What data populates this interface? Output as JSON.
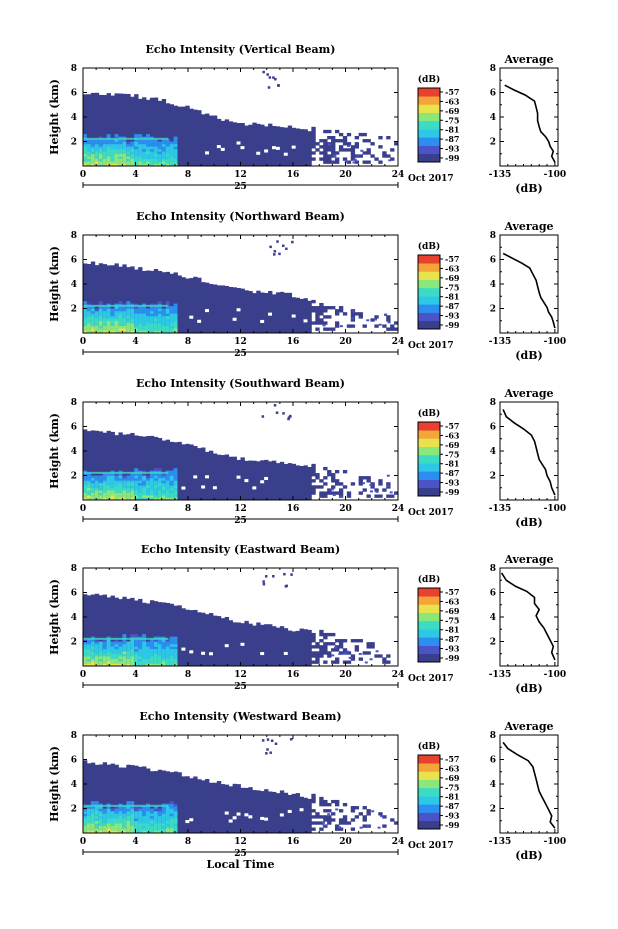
{
  "chart_data": [
    {
      "type": "heatmap",
      "title": "Echo Intensity (Vertical Beam)",
      "ylabel": "Height (km)",
      "xlim": [
        0,
        24
      ],
      "ylim": [
        0,
        8
      ],
      "xticks": [
        0,
        4,
        8,
        12,
        16,
        20,
        24
      ],
      "yticks": [
        2,
        4,
        6,
        8
      ],
      "date_label": "25",
      "month_label": "Oct 2017",
      "echo_top_km": [
        [
          0,
          6.0
        ],
        [
          2,
          5.9
        ],
        [
          4,
          5.7
        ],
        [
          6,
          5.4
        ],
        [
          8,
          4.8
        ],
        [
          10,
          4.0
        ],
        [
          12,
          3.5
        ],
        [
          14,
          3.3
        ],
        [
          16,
          3.2
        ],
        [
          18,
          2.9
        ],
        [
          20,
          2.6
        ],
        [
          22,
          2.4
        ],
        [
          24,
          2.2
        ]
      ],
      "colorbar": {
        "unit": "(dB)",
        "ticks": [
          -57,
          -63,
          -69,
          -75,
          -81,
          -87,
          -93,
          -99
        ]
      },
      "profile": {
        "title": "Average",
        "xlabel": "(dB)",
        "xlim": [
          -135,
          -98
        ],
        "ylim": [
          0,
          8
        ],
        "xticks": [
          -135,
          -100
        ],
        "yticks": [
          2,
          4,
          6,
          8
        ],
        "x": [
          -132,
          -126,
          -119,
          -113,
          -112,
          -111,
          -111,
          -110,
          -109,
          -106,
          -104,
          -103,
          -101,
          -102,
          -100
        ],
        "y": [
          6.6,
          6.2,
          5.8,
          5.3,
          4.8,
          4.3,
          3.7,
          3.2,
          2.8,
          2.4,
          2.0,
          1.6,
          1.2,
          0.8,
          0.3
        ]
      }
    },
    {
      "type": "heatmap",
      "title": "Echo Intensity (Northward Beam)",
      "ylabel": "Height (km)",
      "xlim": [
        0,
        24
      ],
      "ylim": [
        0,
        8
      ],
      "xticks": [
        0,
        4,
        8,
        12,
        16,
        20,
        24
      ],
      "yticks": [
        2,
        4,
        6,
        8
      ],
      "date_label": "25",
      "month_label": "Oct 2017",
      "echo_top_km": [
        [
          0,
          5.8
        ],
        [
          2,
          5.6
        ],
        [
          4,
          5.3
        ],
        [
          6,
          5.0
        ],
        [
          8,
          4.6
        ],
        [
          10,
          4.0
        ],
        [
          12,
          3.5
        ],
        [
          14,
          3.3
        ],
        [
          16,
          3.1
        ],
        [
          18,
          2.5
        ],
        [
          20,
          1.8
        ],
        [
          22,
          1.2
        ],
        [
          24,
          1.0
        ]
      ],
      "colorbar": {
        "unit": "(dB)",
        "ticks": [
          -57,
          -63,
          -69,
          -75,
          -81,
          -87,
          -93,
          -99
        ]
      },
      "profile": {
        "title": "Average",
        "xlabel": "(dB)",
        "xlim": [
          -135,
          -98
        ],
        "ylim": [
          0,
          8
        ],
        "xticks": [
          -135,
          -100
        ],
        "yticks": [
          2,
          4,
          6,
          8
        ],
        "x": [
          -133,
          -127,
          -121,
          -116,
          -114,
          -112,
          -111,
          -110,
          -109,
          -107,
          -105,
          -104,
          -102,
          -101,
          -100
        ],
        "y": [
          6.5,
          6.1,
          5.7,
          5.3,
          4.8,
          4.3,
          3.8,
          3.3,
          2.9,
          2.5,
          2.1,
          1.7,
          1.3,
          0.9,
          0.4
        ]
      }
    },
    {
      "type": "heatmap",
      "title": "Echo Intensity (Southward Beam)",
      "ylabel": "Height (km)",
      "xlim": [
        0,
        24
      ],
      "ylim": [
        0,
        8
      ],
      "xticks": [
        0,
        4,
        8,
        12,
        16,
        20,
        24
      ],
      "yticks": [
        2,
        4,
        6,
        8
      ],
      "date_label": "25",
      "month_label": "Oct 2017",
      "echo_top_km": [
        [
          0,
          5.7
        ],
        [
          2,
          5.5
        ],
        [
          4,
          5.3
        ],
        [
          6,
          5.0
        ],
        [
          8,
          4.5
        ],
        [
          10,
          3.9
        ],
        [
          12,
          3.4
        ],
        [
          14,
          3.2
        ],
        [
          16,
          3.0
        ],
        [
          18,
          2.6
        ],
        [
          20,
          2.2
        ],
        [
          22,
          1.6
        ],
        [
          24,
          1.2
        ]
      ],
      "colorbar": {
        "unit": "(dB)",
        "ticks": [
          -57,
          -63,
          -69,
          -75,
          -81,
          -87,
          -93,
          -99
        ]
      },
      "profile": {
        "title": "Average",
        "xlabel": "(dB)",
        "xlim": [
          -135,
          -98
        ],
        "ylim": [
          0,
          8
        ],
        "xticks": [
          -135,
          -100
        ],
        "yticks": [
          2,
          4,
          6,
          8
        ],
        "x": [
          -133,
          -131,
          -126,
          -120,
          -115,
          -113,
          -112,
          -111,
          -110,
          -108,
          -106,
          -105,
          -103,
          -102,
          -100
        ],
        "y": [
          7.4,
          6.8,
          6.3,
          5.8,
          5.3,
          4.8,
          4.3,
          3.8,
          3.3,
          2.9,
          2.5,
          2.0,
          1.5,
          1.0,
          0.4
        ]
      }
    },
    {
      "type": "heatmap",
      "title": "Echo Intensity (Eastward Beam)",
      "ylabel": "Height (km)",
      "xlim": [
        0,
        24
      ],
      "ylim": [
        0,
        8
      ],
      "xticks": [
        0,
        4,
        8,
        12,
        16,
        20,
        24
      ],
      "yticks": [
        2,
        4,
        6,
        8
      ],
      "date_label": "25",
      "month_label": "Oct 2017",
      "echo_top_km": [
        [
          0,
          5.9
        ],
        [
          2,
          5.7
        ],
        [
          4,
          5.4
        ],
        [
          6,
          5.1
        ],
        [
          8,
          4.7
        ],
        [
          10,
          4.1
        ],
        [
          12,
          3.6
        ],
        [
          14,
          3.3
        ],
        [
          16,
          3.0
        ],
        [
          18,
          2.7
        ],
        [
          20,
          2.3
        ],
        [
          22,
          1.8
        ],
        [
          24,
          1.4
        ]
      ],
      "colorbar": {
        "unit": "(dB)",
        "ticks": [
          -57,
          -63,
          -69,
          -75,
          -81,
          -87,
          -93,
          -99
        ]
      },
      "profile": {
        "title": "Average",
        "xlabel": "(dB)",
        "xlim": [
          -135,
          -98
        ],
        "ylim": [
          0,
          8
        ],
        "xticks": [
          -135,
          -100
        ],
        "yticks": [
          2,
          4,
          6,
          8
        ],
        "x": [
          -134,
          -131,
          -125,
          -118,
          -113,
          -113,
          -110,
          -112,
          -110,
          -107,
          -105,
          -103,
          -101,
          -102,
          -100
        ],
        "y": [
          7.6,
          7.0,
          6.5,
          6.1,
          5.6,
          5.1,
          4.6,
          4.1,
          3.6,
          3.1,
          2.6,
          2.1,
          1.6,
          1.1,
          0.5
        ]
      }
    },
    {
      "type": "heatmap",
      "title": "Echo Intensity (Westward Beam)",
      "ylabel": "Height (km)",
      "xlabel": "Local Time",
      "xlim": [
        0,
        24
      ],
      "ylim": [
        0,
        8
      ],
      "xticks": [
        0,
        4,
        8,
        12,
        16,
        20,
        24
      ],
      "yticks": [
        2,
        4,
        6,
        8
      ],
      "date_label": "25",
      "month_label": "Oct 2017",
      "echo_top_km": [
        [
          0,
          5.8
        ],
        [
          2,
          5.6
        ],
        [
          4,
          5.4
        ],
        [
          6,
          5.1
        ],
        [
          8,
          4.7
        ],
        [
          10,
          4.2
        ],
        [
          12,
          3.8
        ],
        [
          14,
          3.5
        ],
        [
          16,
          3.2
        ],
        [
          18,
          2.8
        ],
        [
          20,
          2.5
        ],
        [
          22,
          1.8
        ],
        [
          24,
          1.2
        ]
      ],
      "colorbar": {
        "unit": "(dB)",
        "ticks": [
          -57,
          -63,
          -69,
          -75,
          -81,
          -87,
          -93,
          -99
        ]
      },
      "profile": {
        "title": "Average",
        "xlabel": "(dB)",
        "xlim": [
          -135,
          -98
        ],
        "ylim": [
          0,
          8
        ],
        "xticks": [
          -135,
          -100
        ],
        "yticks": [
          2,
          4,
          6,
          8
        ],
        "x": [
          -133,
          -130,
          -124,
          -117,
          -114,
          -113,
          -112,
          -111,
          -110,
          -108,
          -106,
          -104,
          -102,
          -103,
          -100
        ],
        "y": [
          7.4,
          6.9,
          6.4,
          5.9,
          5.4,
          4.9,
          4.4,
          3.9,
          3.4,
          2.9,
          2.4,
          1.9,
          1.4,
          0.9,
          0.4
        ]
      }
    }
  ],
  "colors": {
    "colormap": [
      "#3a3f8c",
      "#4a54c8",
      "#2b8ef0",
      "#2cc8e6",
      "#3cdcc4",
      "#8ae87a",
      "#e8e34c",
      "#f5a43a",
      "#e9412f"
    ],
    "echo_fill": "#3a3f8c",
    "sparse_echo": "#4a54c8",
    "strong_layer": "#3cdcc4"
  }
}
